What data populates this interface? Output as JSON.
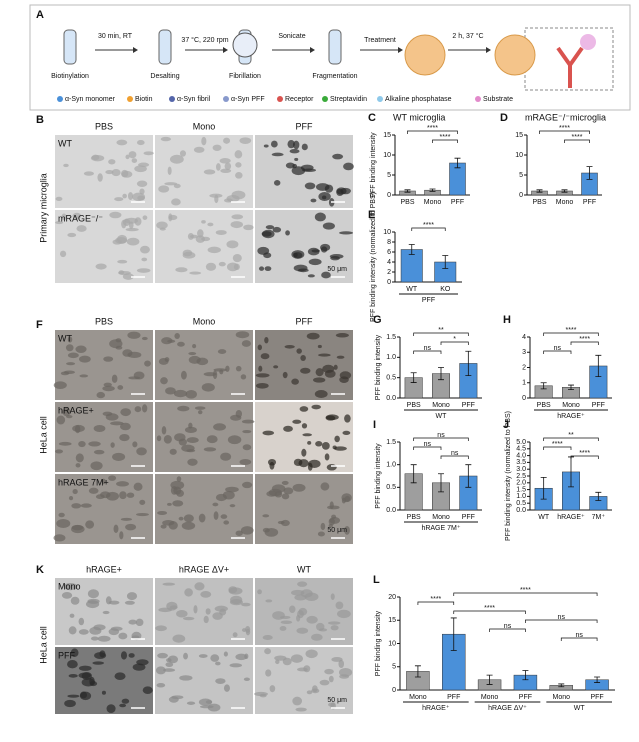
{
  "panel_a": {
    "letter": "A",
    "steps": [
      "Biotinylation",
      "Desalting",
      "Fibrillation",
      "Fragmentation"
    ],
    "conditions": [
      "30 min, RT",
      "37 °C, 220 rpm",
      "Sonicate",
      "Treatment",
      "2 h, 37 °C"
    ],
    "legend": [
      "α-Syn monomer",
      "Biotin",
      "α-Syn fibril",
      "α-Syn PFF",
      "Receptor",
      "Streptavidin",
      "Alkaline phosphatase",
      "Substrate"
    ]
  },
  "panel_b": {
    "letter": "B",
    "side_label": "Primary microglia",
    "columns": [
      "PBS",
      "Mono",
      "PFF"
    ],
    "rows": [
      "WT",
      "mRAGE⁻/⁻"
    ],
    "scale_bar": "50 μm"
  },
  "panel_f": {
    "letter": "F",
    "side_label": "HeLa cell",
    "columns": [
      "PBS",
      "Mono",
      "PFF"
    ],
    "rows": [
      "WT",
      "hRAGE+",
      "hRAGE 7M+"
    ],
    "scale_bar": "50 μm"
  },
  "panel_k": {
    "letter": "K",
    "side_label": "HeLa cell",
    "columns": [
      "hRAGE+",
      "hRAGE ΔV+",
      "WT"
    ],
    "rows": [
      "Mono",
      "PFF"
    ],
    "scale_bar": "50 μm"
  },
  "chart_data": [
    {
      "type": "bar",
      "letter": "C",
      "title": "WT microglia",
      "y_label": "PFF binding intensity",
      "categories": [
        "PBS",
        "Mono",
        "PFF"
      ],
      "values": [
        1,
        1.2,
        8
      ],
      "errors": [
        0.3,
        0.3,
        1.2
      ],
      "colors": [
        "#9e9e9e",
        "#9e9e9e",
        "#4a90d9"
      ],
      "ylim": [
        0,
        15
      ],
      "yticks": [
        0,
        5,
        10,
        15
      ],
      "significance": [
        {
          "label": "****",
          "pair": [
            0,
            2
          ]
        },
        {
          "label": "****",
          "pair": [
            1,
            2
          ]
        }
      ]
    },
    {
      "type": "bar",
      "letter": "D",
      "title": "mRAGE⁻/⁻microglia",
      "categories": [
        "PBS",
        "Mono",
        "PFF"
      ],
      "values": [
        1,
        1,
        5.5
      ],
      "errors": [
        0.3,
        0.3,
        1.6
      ],
      "colors": [
        "#9e9e9e",
        "#9e9e9e",
        "#4a90d9"
      ],
      "ylim": [
        0,
        15
      ],
      "yticks": [
        0,
        5,
        10,
        15
      ],
      "significance": [
        {
          "label": "****",
          "pair": [
            0,
            2
          ]
        },
        {
          "label": "****",
          "pair": [
            1,
            2
          ]
        }
      ]
    },
    {
      "type": "bar",
      "letter": "E",
      "y_label": "PFF binding intensity (normalized to PBS)",
      "categories": [
        "WT",
        "KO"
      ],
      "x_label": "PFF",
      "values": [
        6.5,
        4
      ],
      "errors": [
        1,
        1.3
      ],
      "colors": [
        "#4a90d9",
        "#4a90d9"
      ],
      "ylim": [
        0,
        10
      ],
      "yticks": [
        0,
        2,
        4,
        6,
        8,
        10
      ],
      "significance": [
        {
          "label": "****",
          "pair": [
            0,
            1
          ]
        }
      ]
    },
    {
      "type": "bar",
      "letter": "G",
      "y_label": "PFF binding intensity",
      "categories": [
        "PBS",
        "Mono",
        "PFF"
      ],
      "x_label": "WT",
      "values": [
        0.5,
        0.6,
        0.85
      ],
      "errors": [
        0.12,
        0.15,
        0.3
      ],
      "colors": [
        "#9e9e9e",
        "#9e9e9e",
        "#4a90d9"
      ],
      "ylim": [
        0,
        1.5
      ],
      "yticks": [
        {
          "value": 0,
          "label": "0.0"
        },
        {
          "value": 0.5,
          "label": "0.5"
        },
        {
          "value": 1,
          "label": "1.0"
        },
        {
          "value": 1.5,
          "label": "1.5"
        }
      ],
      "significance": [
        {
          "label": "**",
          "pair": [
            0,
            2
          ]
        },
        {
          "label": "*",
          "pair": [
            1,
            2
          ]
        },
        {
          "label": "ns",
          "pair": [
            0,
            1
          ]
        }
      ]
    },
    {
      "type": "bar",
      "letter": "H",
      "categories": [
        "PBS",
        "Mono",
        "PFF"
      ],
      "x_label": "hRAGE⁺",
      "values": [
        0.8,
        0.7,
        2.1
      ],
      "errors": [
        0.2,
        0.15,
        0.7
      ],
      "colors": [
        "#9e9e9e",
        "#9e9e9e",
        "#4a90d9"
      ],
      "ylim": [
        0,
        4
      ],
      "yticks": [
        0,
        1,
        2,
        3,
        4
      ],
      "significance": [
        {
          "label": "****",
          "pair": [
            0,
            2
          ]
        },
        {
          "label": "****",
          "pair": [
            1,
            2
          ]
        },
        {
          "label": "ns",
          "pair": [
            0,
            1
          ]
        }
      ]
    },
    {
      "type": "bar",
      "letter": "I",
      "y_label": "PFF binding intensity",
      "categories": [
        "PBS",
        "Mono",
        "PFF"
      ],
      "x_label": "hRAGE 7M⁺",
      "values": [
        0.8,
        0.6,
        0.75
      ],
      "errors": [
        0.2,
        0.2,
        0.25
      ],
      "colors": [
        "#9e9e9e",
        "#9e9e9e",
        "#4a90d9"
      ],
      "ylim": [
        0,
        1.5
      ],
      "yticks": [
        {
          "value": 0,
          "label": "0.0"
        },
        {
          "value": 0.5,
          "label": "0.5"
        },
        {
          "value": 1,
          "label": "1.0"
        },
        {
          "value": 1.5,
          "label": "1.5"
        }
      ],
      "significance": [
        {
          "label": "ns",
          "pair": [
            0,
            2
          ]
        },
        {
          "label": "ns",
          "pair": [
            0,
            1
          ]
        },
        {
          "label": "ns",
          "pair": [
            1,
            2
          ]
        }
      ]
    },
    {
      "type": "bar",
      "letter": "J",
      "y_label": "PFF binding intensity (normalized to PBS)",
      "categories": [
        "WT",
        "hRAGE⁺",
        "7M⁺"
      ],
      "values": [
        1.6,
        2.8,
        1
      ],
      "errors": [
        0.8,
        1.1,
        0.3
      ],
      "colors": [
        "#4a90d9",
        "#4a90d9",
        "#4a90d9"
      ],
      "ylim": [
        0,
        5
      ],
      "yticks": [
        {
          "value": 0,
          "label": "0.0"
        },
        {
          "value": 0.5,
          "label": "0.5"
        },
        {
          "value": 1,
          "label": "1.0"
        },
        {
          "value": 1.5,
          "label": "1.5"
        },
        {
          "value": 2,
          "label": "2.0"
        },
        {
          "value": 2.5,
          "label": "2.5"
        },
        {
          "value": 3,
          "label": "3.0"
        },
        {
          "value": 3.5,
          "label": "3.5"
        },
        {
          "value": 4,
          "label": "4.0"
        },
        {
          "value": 4.5,
          "label": "4.5"
        },
        {
          "value": 5,
          "label": "5.0"
        }
      ],
      "significance": [
        {
          "label": "**",
          "pair": [
            0,
            2
          ]
        },
        {
          "label": "****",
          "pair": [
            0,
            1
          ]
        },
        {
          "label": "****",
          "pair": [
            1,
            2
          ]
        }
      ]
    },
    {
      "type": "bar",
      "letter": "L",
      "y_label": "PFF binding intensity",
      "categories": [
        "Mono",
        "PFF",
        "Mono",
        "PFF",
        "Mono",
        "PFF"
      ],
      "groups": [
        "hRAGE⁺",
        "hRAGE ΔV⁺",
        "WT"
      ],
      "values": [
        4,
        12,
        2.2,
        3.2,
        1,
        2.2
      ],
      "errors": [
        1.2,
        3.5,
        1,
        1,
        0.3,
        0.6
      ],
      "colors": [
        "#9e9e9e",
        "#4a90d9",
        "#9e9e9e",
        "#4a90d9",
        "#9e9e9e",
        "#4a90d9"
      ],
      "ylim": [
        0,
        20
      ],
      "yticks": [
        0,
        5,
        10,
        15,
        20
      ],
      "significance": [
        {
          "label": "****",
          "pair": [
            1,
            5
          ]
        },
        {
          "label": "****",
          "pair": [
            0,
            1
          ]
        },
        {
          "label": "****",
          "pair": [
            1,
            3
          ]
        },
        {
          "label": "ns",
          "pair": [
            3,
            5
          ]
        },
        {
          "label": "ns",
          "pair": [
            2,
            3
          ]
        },
        {
          "label": "ns",
          "pair": [
            4,
            5
          ]
        }
      ]
    }
  ]
}
